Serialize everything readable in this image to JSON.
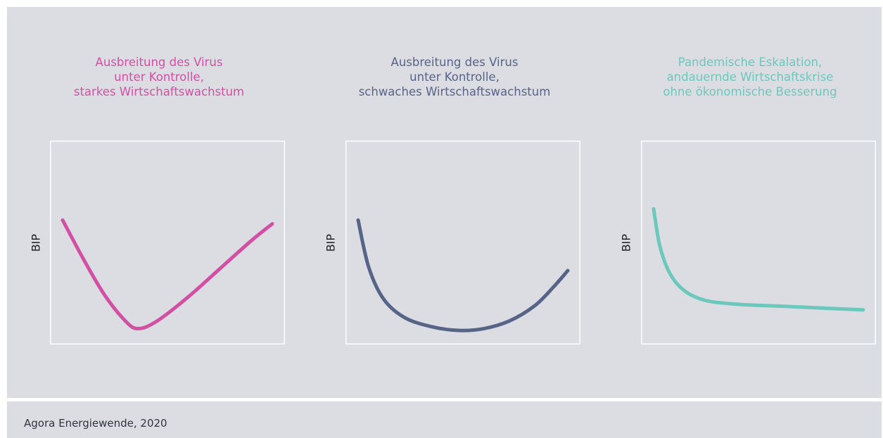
{
  "chart_data": [
    {
      "type": "line",
      "title_lines": [
        "Ausbreitung des Virus",
        "unter Kontrolle,",
        "starkes Wirtschaftswachstum"
      ],
      "ylabel": "BIP",
      "xlabel": "",
      "color": "#d24fa3",
      "shape": "V-shaped recovery",
      "series": [
        {
          "x": [
            0.0,
            0.1,
            0.2,
            0.3,
            0.36,
            0.45,
            0.6,
            0.75,
            0.9,
            1.0
          ],
          "y": [
            0.62,
            0.41,
            0.22,
            0.08,
            0.04,
            0.08,
            0.21,
            0.36,
            0.51,
            0.6
          ]
        }
      ]
    },
    {
      "type": "line",
      "title_lines": [
        "Ausbreitung des Virus",
        "unter Kontrolle,",
        "schwaches Wirtschaftswachstum"
      ],
      "ylabel": "BIP",
      "xlabel": "",
      "color": "#566487",
      "shape": "U-shaped recovery",
      "series": [
        {
          "x": [
            0.0,
            0.05,
            0.12,
            0.22,
            0.35,
            0.48,
            0.6,
            0.72,
            0.84,
            0.93,
            1.0
          ],
          "y": [
            0.62,
            0.37,
            0.2,
            0.1,
            0.05,
            0.03,
            0.04,
            0.08,
            0.16,
            0.26,
            0.35
          ]
        }
      ]
    },
    {
      "type": "line",
      "title_lines": [
        "Pandemische Eskalation,",
        "andauernde Wirtschaftskrise",
        "ohne ökonomische Besserung"
      ],
      "ylabel": "BIP",
      "xlabel": "",
      "color": "#6cc7bc",
      "shape": "L-shaped",
      "series": [
        {
          "x": [
            0.0,
            0.03,
            0.08,
            0.15,
            0.25,
            0.4,
            0.6,
            0.8,
            1.0
          ],
          "y": [
            0.68,
            0.48,
            0.33,
            0.24,
            0.19,
            0.17,
            0.16,
            0.15,
            0.14
          ]
        }
      ]
    }
  ],
  "footer": {
    "source": "Agora Energiewende, 2020"
  }
}
